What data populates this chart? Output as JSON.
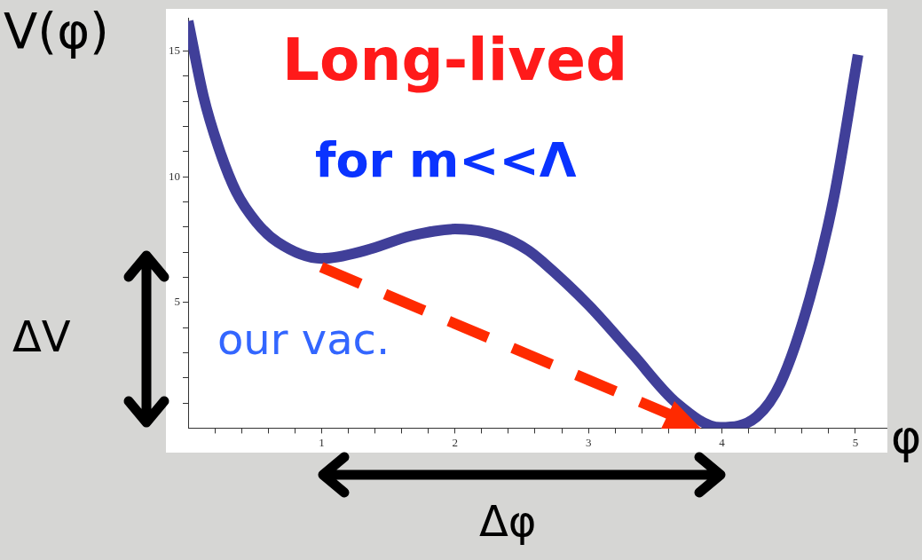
{
  "chart_data": {
    "type": "line",
    "xlabel": "φ",
    "ylabel": "V(φ)",
    "annotations": [
      "Long-lived",
      "for m<<Λ",
      "our vac.",
      "ΔV",
      "Δφ"
    ],
    "series": [
      {
        "color": "#403f99",
        "x": [
          0,
          0.115,
          0.226,
          0.36,
          0.51,
          0.67,
          1.0,
          1.33,
          1.67,
          2.0,
          2.33,
          2.55,
          2.66,
          3.0,
          3.33,
          3.66,
          3.99,
          4.26,
          4.44,
          4.66,
          4.84,
          5.02
        ],
        "values": [
          16.2,
          13.2,
          11.2,
          9.4,
          8.2,
          7.4,
          6.75,
          7.07,
          7.65,
          7.92,
          7.65,
          7.07,
          6.6,
          4.9,
          2.95,
          1.0,
          0.03,
          0.45,
          1.8,
          5.2,
          9.2,
          14.85
        ]
      }
    ],
    "xlim": [
      0,
      5.24
    ],
    "ylim": [
      0,
      16.3
    ],
    "xticks": [
      {
        "value": 0.2,
        "label": null
      },
      {
        "value": 0.4,
        "label": null
      },
      {
        "value": 0.6,
        "label": null
      },
      {
        "value": 0.8,
        "label": null
      },
      1,
      {
        "value": 1.2,
        "label": null
      },
      {
        "value": 1.4,
        "label": null
      },
      {
        "value": 1.6,
        "label": null
      },
      {
        "value": 1.8,
        "label": null
      },
      2,
      {
        "value": 2.2,
        "label": null
      },
      {
        "value": 2.4,
        "label": null
      },
      {
        "value": 2.6,
        "label": null
      },
      {
        "value": 2.8,
        "label": null
      },
      3,
      {
        "value": 3.2,
        "label": null
      },
      {
        "value": 3.4,
        "label": null
      },
      {
        "value": 3.6,
        "label": null
      },
      {
        "value": 3.8,
        "label": null
      },
      4,
      {
        "value": 4.2,
        "label": null
      },
      {
        "value": 4.4,
        "label": null
      },
      {
        "value": 4.6,
        "label": null
      },
      {
        "value": 4.8,
        "label": null
      },
      5
    ],
    "yticks": [
      {
        "value": 1,
        "label": null
      },
      {
        "value": 2,
        "label": null
      },
      {
        "value": 3,
        "label": null
      },
      {
        "value": 4,
        "label": null
      },
      5,
      {
        "value": 6,
        "label": null
      },
      {
        "value": 7,
        "label": null
      },
      {
        "value": 8,
        "label": null
      },
      {
        "value": 9,
        "label": null
      },
      10,
      {
        "value": 11,
        "label": null
      },
      {
        "value": 12,
        "label": null
      },
      {
        "value": 13,
        "label": null
      },
      {
        "value": 14,
        "label": null
      },
      15
    ],
    "grid": false,
    "legend": false,
    "marker": "none",
    "line_style": "solid"
  }
}
